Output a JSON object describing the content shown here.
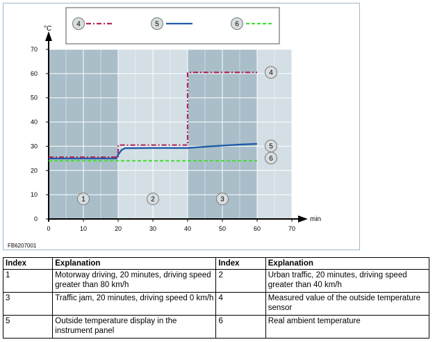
{
  "chart_data": {
    "type": "line",
    "ylabel": "°C",
    "xlabel": "min",
    "xlim": [
      0,
      70
    ],
    "ylim": [
      0,
      70
    ],
    "x_ticks": [
      "0",
      "10",
      "20",
      "30",
      "40",
      "50",
      "60",
      "70"
    ],
    "y_ticks": [
      "0",
      "10",
      "20",
      "30",
      "40",
      "50",
      "60",
      "70"
    ],
    "grid": true,
    "legend_position": "top",
    "phases": [
      {
        "label": "1",
        "x_start": 0,
        "x_end": 20
      },
      {
        "label": "2",
        "x_start": 20,
        "x_end": 40
      },
      {
        "label": "3",
        "x_start": 40,
        "x_end": 60
      }
    ],
    "series": [
      {
        "name": "4",
        "style": "dash-dot",
        "color": "#b0285a",
        "x": [
          0,
          20,
          20,
          40,
          40,
          60
        ],
        "y": [
          25.5,
          25.5,
          30.5,
          30.5,
          60.5,
          60.5
        ]
      },
      {
        "name": "5",
        "style": "solid",
        "color": "#1f5ca8",
        "x": [
          0,
          19.5,
          20,
          21,
          22,
          30,
          40,
          45,
          50,
          55,
          60
        ],
        "y": [
          25,
          25,
          26.5,
          28.5,
          29.2,
          29.3,
          29.3,
          29.8,
          30.3,
          30.7,
          31
        ]
      },
      {
        "name": "6",
        "style": "dashed",
        "color": "#44dd33",
        "x": [
          0,
          60
        ],
        "y": [
          24,
          24
        ]
      }
    ]
  },
  "figure_code": "FB6207001",
  "table": {
    "headers": [
      "Index",
      "Explanation",
      "Index",
      "Explanation"
    ],
    "rows": [
      [
        "1",
        "Motorway driving, 20 minutes, driving speed greater than 80 km/h",
        "2",
        "Urban traffic, 20 minutes, driving speed greater than 40 km/h"
      ],
      [
        "3",
        "Traffic jam, 20 minutes, driving speed 0 km/h",
        "4",
        "Measured value of the outside temperature sensor"
      ],
      [
        "5",
        "Outside temperature display in the instrument panel",
        "6",
        "Real ambient temperature"
      ]
    ]
  }
}
